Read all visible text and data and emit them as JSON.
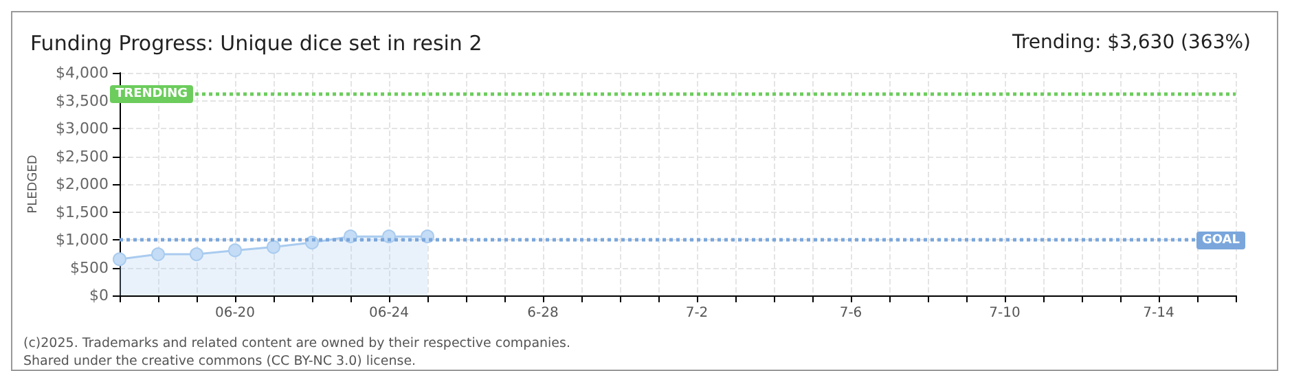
{
  "chart_data": {
    "type": "area",
    "title": "Funding Progress: Unique dice set in resin 2",
    "subtitle": "Trending: $3,630 (363%)",
    "ylabel": "PLEDGED",
    "categories": [
      null,
      null,
      null,
      "06-20",
      null,
      null,
      null,
      "06-24",
      null,
      null,
      null,
      "6-28",
      null,
      null,
      null,
      "7-2",
      null,
      null,
      null,
      "7-6",
      null,
      null,
      null,
      "7-10",
      null,
      null,
      null,
      "7-14",
      null,
      null
    ],
    "series": [
      {
        "color": "#a9cbef",
        "values": [
          650,
          740,
          740,
          810,
          870,
          950,
          1060,
          1060,
          1060,
          null,
          null,
          null,
          null,
          null,
          null,
          null,
          null,
          null,
          null,
          null,
          null,
          null,
          null,
          null,
          null,
          null,
          null,
          null,
          null,
          null
        ]
      }
    ],
    "ylim": [
      0,
      4000
    ],
    "yticks": [
      {
        "value": 0,
        "label": "$0"
      },
      {
        "value": 500,
        "label": "$500"
      },
      {
        "value": 1000,
        "label": "$1,000"
      },
      {
        "value": 1500,
        "label": "$1,500"
      },
      {
        "value": 2000,
        "label": "$2,000"
      },
      {
        "value": 2500,
        "label": "$2,500"
      },
      {
        "value": 3000,
        "label": "$3,000"
      },
      {
        "value": 3500,
        "label": "$3,500"
      },
      {
        "value": 4000,
        "label": "$4,000"
      }
    ],
    "ref_lines": [
      {
        "axis": "y",
        "value": 3630,
        "label": "TRENDING",
        "color": "#6ccc5c",
        "line_style": "dotted"
      },
      {
        "axis": "y",
        "value": 1000,
        "label": "GOAL",
        "color": "#7aa6dc",
        "line_style": "dotted"
      }
    ],
    "grid": true,
    "marker": "circle",
    "line_style": "solid",
    "annotations": [
      "(c)2025. Trademarks and related content are owned by their respective companies.",
      "Shared under the creative commons (CC BY-NC 3.0) license."
    ]
  }
}
